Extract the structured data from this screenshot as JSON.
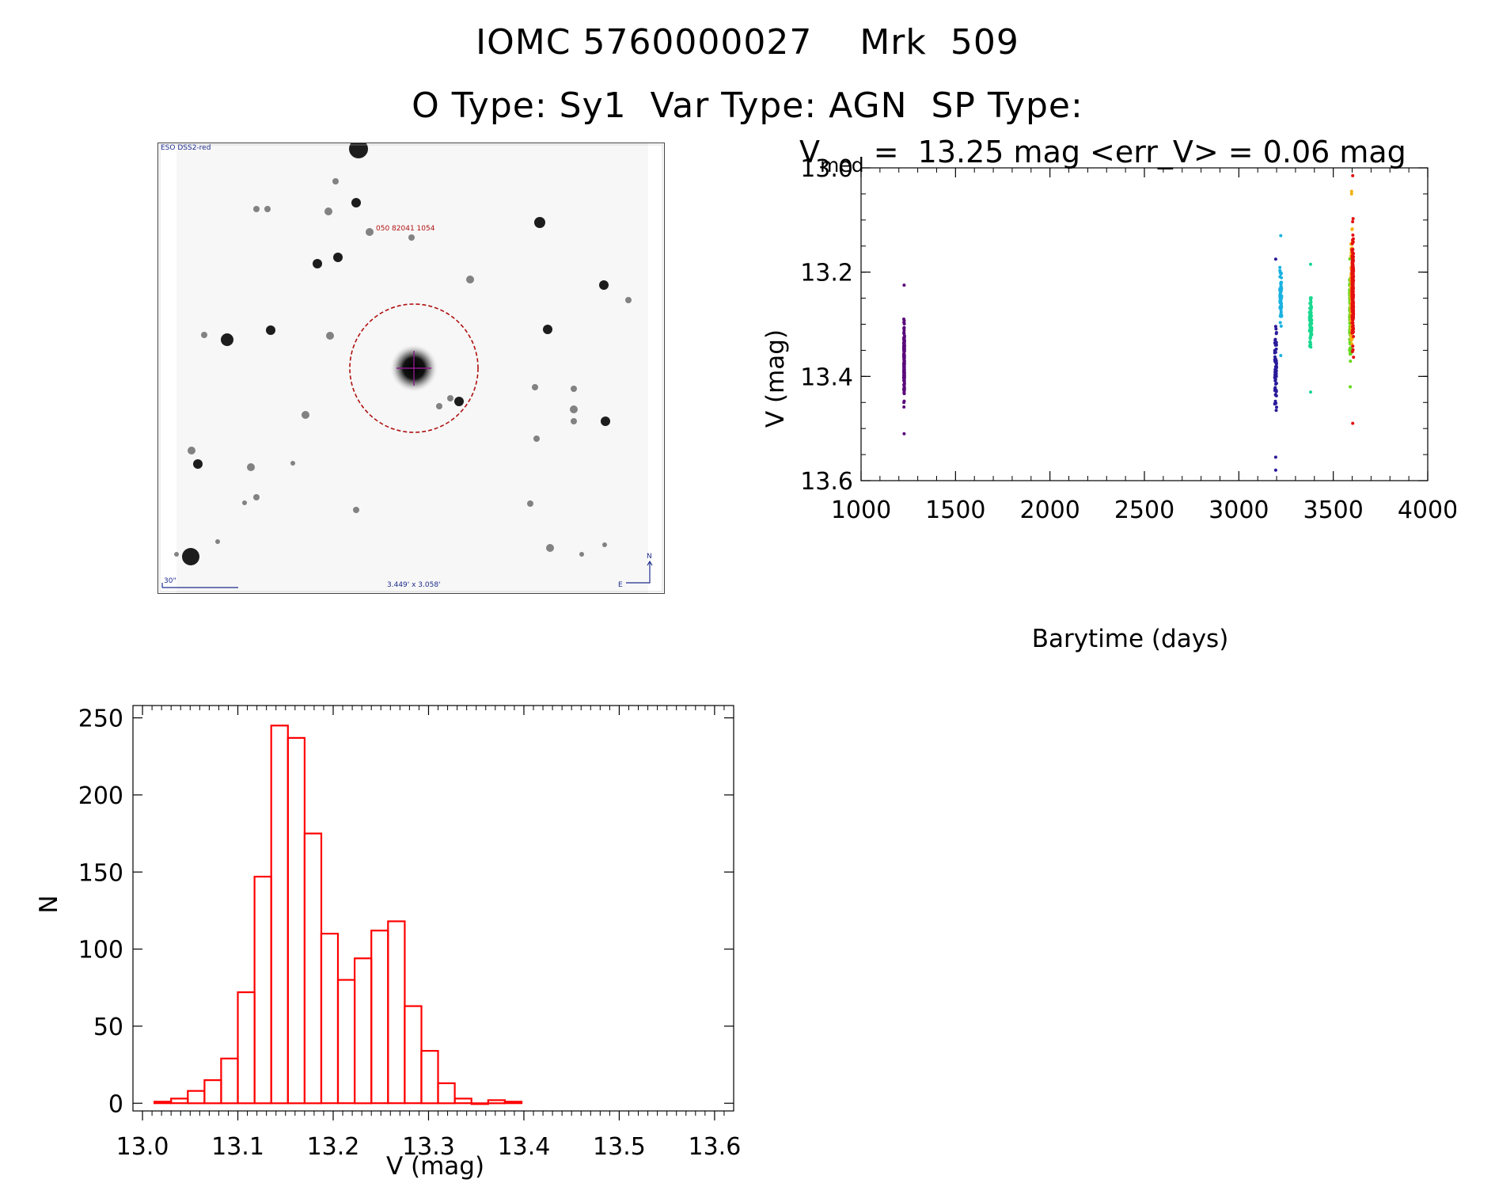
{
  "header": {
    "line1": "IOMC 5760000027    Mrk  509",
    "line2": "O Type: Sy1  Var Type: AGN  SP Type:"
  },
  "finder": {
    "survey_label": "ESO DSS2-red",
    "target_label": "050 82041 1054",
    "scale_label": "30\"",
    "fov_label": "3.449' x 3.058'",
    "north_label": "N",
    "east_label": "E",
    "circle_color": "#b01010",
    "text_color": "#1c2c8c"
  },
  "lightcurve_header": {
    "v_symbol": "V",
    "v_sub": "med",
    "text": " =  13.25 mag <err_V> = 0.06 mag"
  },
  "chart_data": [
    {
      "type": "scatter",
      "title": "Vmed = 13.25 mag <err_V> = 0.06 mag",
      "xlabel": "Barytime (days)",
      "ylabel": "V (mag)",
      "xlim": [
        1000,
        4000
      ],
      "ylim": [
        13.6,
        13.0
      ],
      "xticks": [
        1000,
        1500,
        2000,
        2500,
        3000,
        3500,
        4000
      ],
      "yticks": [
        13.0,
        13.2,
        13.4,
        13.6
      ],
      "ytick_labels": [
        "13.0",
        "13.2",
        "13.4",
        "13.6"
      ],
      "clusters": [
        {
          "x": 1228,
          "xspread": 2,
          "ymin": 13.27,
          "ymax": 13.48,
          "ycenter": 13.375,
          "n": 170,
          "color": "#5a0a7a",
          "outliers": [
            13.225,
            13.51
          ]
        },
        {
          "x": 3195,
          "xspread": 5,
          "ymin": 13.27,
          "ymax": 13.5,
          "ycenter": 13.37,
          "n": 70,
          "color": "#2a1a9a",
          "outliers": [
            13.555,
            13.58,
            13.175
          ]
        },
        {
          "x": 3222,
          "xspread": 5,
          "ymin": 13.18,
          "ymax": 13.32,
          "ycenter": 13.25,
          "n": 60,
          "color": "#1ab2e0",
          "outliers": [
            13.13,
            13.36
          ]
        },
        {
          "x": 3380,
          "xspread": 6,
          "ymin": 13.23,
          "ymax": 13.37,
          "ycenter": 13.29,
          "n": 70,
          "color": "#18d890",
          "outliers": [
            13.185,
            13.43
          ]
        },
        {
          "x": 3590,
          "xspread": 4,
          "ymin": 13.16,
          "ymax": 13.4,
          "ycenter": 13.27,
          "n": 120,
          "color": "#66d81a",
          "outliers": [
            13.42
          ]
        },
        {
          "x": 3597,
          "xspread": 4,
          "ymin": 13.1,
          "ymax": 13.38,
          "ycenter": 13.24,
          "n": 160,
          "color": "#f4b010",
          "outliers": [
            13.045,
            13.05
          ]
        },
        {
          "x": 3603,
          "xspread": 4,
          "ymin": 13.09,
          "ymax": 13.38,
          "ycenter": 13.23,
          "n": 220,
          "color": "#e41010",
          "outliers": [
            13.015,
            13.49
          ]
        }
      ]
    },
    {
      "type": "bar",
      "subtype": "histogram",
      "xlabel": "V (mag)",
      "ylabel": "N",
      "xlim": [
        12.99,
        13.62
      ],
      "ylim": [
        -5,
        258
      ],
      "bin_width": 0.0175,
      "bin_start": 13.0125,
      "values": [
        1,
        3,
        8,
        15,
        29,
        72,
        147,
        245,
        237,
        175,
        110,
        80,
        94,
        112,
        118,
        63,
        34,
        13,
        3,
        0,
        2,
        1
      ],
      "xticks": [
        13.0,
        13.1,
        13.2,
        13.3,
        13.4,
        13.5,
        13.6
      ],
      "xtick_labels": [
        "13.0",
        "13.1",
        "13.2",
        "13.3",
        "13.4",
        "13.5",
        "13.6"
      ],
      "yticks": [
        0,
        50,
        100,
        150,
        200,
        250
      ],
      "ytick_labels": [
        "0",
        "50",
        "100",
        "150",
        "200",
        "250"
      ],
      "bar_color": "#ff0000"
    }
  ]
}
